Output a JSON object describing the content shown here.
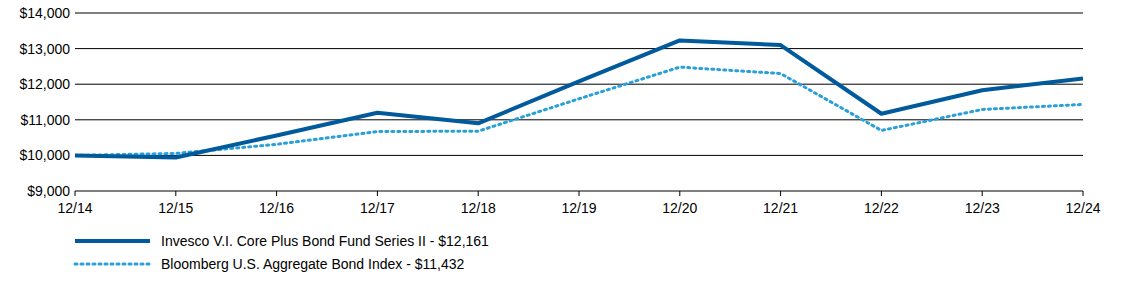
{
  "chart_data": {
    "type": "line",
    "categories": [
      "12/14",
      "12/15",
      "12/16",
      "12/17",
      "12/18",
      "12/19",
      "12/20",
      "12/21",
      "12/22",
      "12/23",
      "12/24"
    ],
    "series": [
      {
        "name": "Invesco V.I. Core Plus Bond Fund Series II - $12,161",
        "color": "#005a9c",
        "line_style": "solid",
        "values": [
          10000,
          9940,
          10560,
          11200,
          10900,
          12080,
          13230,
          13100,
          11170,
          11830,
          12161
        ]
      },
      {
        "name": "Bloomberg U.S. Aggregate Bond Index - $11,432",
        "color": "#2aa0d8",
        "line_style": "dotted",
        "values": [
          10000,
          10055,
          10310,
          10670,
          10680,
          11590,
          12480,
          12300,
          10700,
          11290,
          11432
        ]
      }
    ],
    "ylim": [
      9000,
      14000
    ],
    "yticks": [
      {
        "value": 9000,
        "label": "$9,000"
      },
      {
        "value": 10000,
        "label": "$10,000"
      },
      {
        "value": 11000,
        "label": "$11,000"
      },
      {
        "value": 12000,
        "label": "$12,000"
      },
      {
        "value": 13000,
        "label": "$13,000"
      },
      {
        "value": 14000,
        "label": "$14,000"
      }
    ],
    "grid": true,
    "legend": "bottom"
  }
}
